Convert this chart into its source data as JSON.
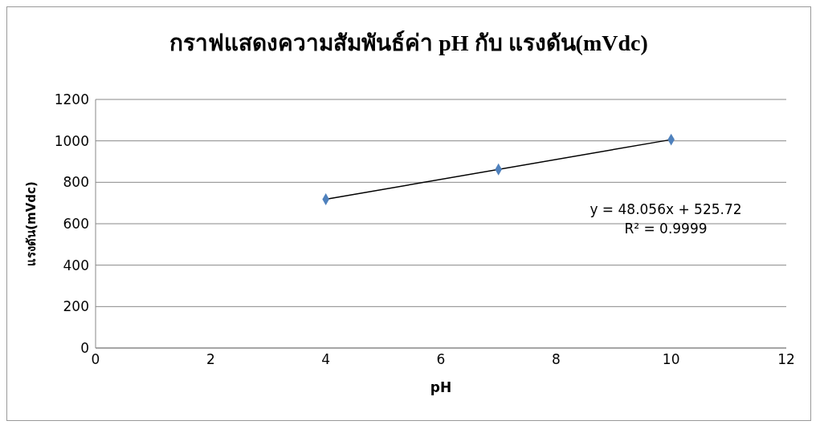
{
  "chart_data": {
    "type": "scatter",
    "title": "กราฟแสดงความสัมพันธ์ค่า pH กับ แรงดัน(mVdc)",
    "xlabel": "pH",
    "ylabel": "แรงดัน(mVdc)",
    "xlim": [
      0,
      12
    ],
    "xticks": [
      0,
      2,
      4,
      6,
      8,
      10,
      12
    ],
    "ylim": [
      0,
      1200
    ],
    "yticks": [
      0,
      200,
      400,
      600,
      800,
      1000,
      1200
    ],
    "grid": "y",
    "series": [
      {
        "marker": "diamond",
        "color": "#4f81bd",
        "x": [
          4,
          7,
          10
        ],
        "values": [
          718,
          862,
          1006
        ]
      },
      {
        "type": "line",
        "marker": "none",
        "color": "#000000",
        "x": [
          4,
          10
        ],
        "values": [
          718,
          1006
        ]
      }
    ],
    "annotations": [
      "y = 48.056x + 525.72",
      "R² = 0.9999"
    ]
  }
}
